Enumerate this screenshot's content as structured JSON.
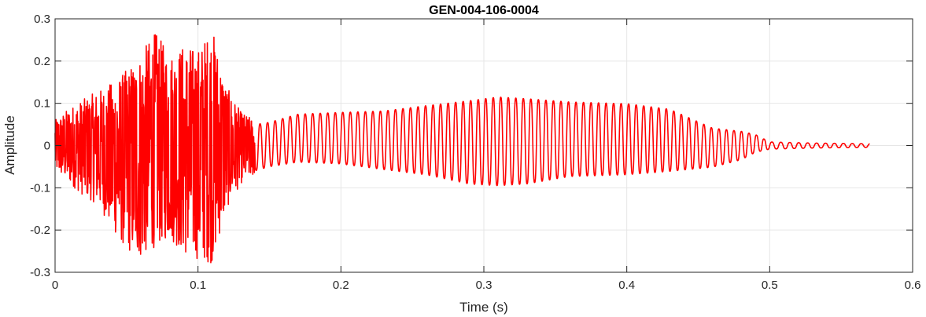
{
  "chart_data": {
    "type": "line",
    "title": "GEN-004-106-0004",
    "xlabel": "Time (s)",
    "ylabel": "Amplitude",
    "xlim": [
      0,
      0.6
    ],
    "ylim": [
      -0.3,
      0.3
    ],
    "xticks": [
      0,
      0.1,
      0.2,
      0.3,
      0.4,
      0.5,
      0.6
    ],
    "xtick_labels": [
      "0",
      "0.1",
      "0.2",
      "0.3",
      "0.4",
      "0.5",
      "0.6"
    ],
    "yticks": [
      -0.3,
      -0.2,
      -0.1,
      0,
      0.1,
      0.2,
      0.3
    ],
    "ytick_labels": [
      "-0.3",
      "-0.2",
      "-0.1",
      "0",
      "0.1",
      "0.2",
      "0.3"
    ],
    "grid": true,
    "line_color": "#ff0000",
    "series": [
      {
        "duration_s": 0.57,
        "upper_envelope": [
          [
            0,
            0.06
          ],
          [
            0.01,
            0.09
          ],
          [
            0.02,
            0.11
          ],
          [
            0.03,
            0.13
          ],
          [
            0.04,
            0.15
          ],
          [
            0.05,
            0.18
          ],
          [
            0.06,
            0.22
          ],
          [
            0.07,
            0.27
          ],
          [
            0.08,
            0.22
          ],
          [
            0.09,
            0.24
          ],
          [
            0.1,
            0.23
          ],
          [
            0.11,
            0.28
          ],
          [
            0.12,
            0.14
          ],
          [
            0.13,
            0.08
          ],
          [
            0.14,
            0.06
          ],
          [
            0.15,
            0.065
          ],
          [
            0.17,
            0.085
          ],
          [
            0.2,
            0.09
          ],
          [
            0.23,
            0.095
          ],
          [
            0.26,
            0.11
          ],
          [
            0.29,
            0.125
          ],
          [
            0.31,
            0.135
          ],
          [
            0.33,
            0.13
          ],
          [
            0.36,
            0.12
          ],
          [
            0.4,
            0.115
          ],
          [
            0.43,
            0.1
          ],
          [
            0.46,
            0.05
          ],
          [
            0.48,
            0.04
          ],
          [
            0.49,
            0.03
          ],
          [
            0.5,
            0.01
          ],
          [
            0.53,
            0.007
          ],
          [
            0.57,
            0.005
          ]
        ],
        "lower_envelope": [
          [
            0,
            -0.06
          ],
          [
            0.01,
            -0.09
          ],
          [
            0.02,
            -0.12
          ],
          [
            0.03,
            -0.14
          ],
          [
            0.04,
            -0.2
          ],
          [
            0.05,
            -0.25
          ],
          [
            0.06,
            -0.27
          ],
          [
            0.07,
            -0.24
          ],
          [
            0.08,
            -0.22
          ],
          [
            0.09,
            -0.26
          ],
          [
            0.1,
            -0.27
          ],
          [
            0.11,
            -0.28
          ],
          [
            0.12,
            -0.15
          ],
          [
            0.13,
            -0.09
          ],
          [
            0.14,
            -0.07
          ],
          [
            0.15,
            -0.06
          ],
          [
            0.17,
            -0.05
          ],
          [
            0.2,
            -0.055
          ],
          [
            0.23,
            -0.07
          ],
          [
            0.26,
            -0.085
          ],
          [
            0.29,
            -0.11
          ],
          [
            0.31,
            -0.115
          ],
          [
            0.33,
            -0.11
          ],
          [
            0.36,
            -0.09
          ],
          [
            0.4,
            -0.085
          ],
          [
            0.43,
            -0.075
          ],
          [
            0.46,
            -0.06
          ],
          [
            0.48,
            -0.04
          ],
          [
            0.49,
            -0.02
          ],
          [
            0.5,
            -0.01
          ],
          [
            0.53,
            -0.007
          ],
          [
            0.57,
            -0.005
          ]
        ]
      }
    ]
  }
}
